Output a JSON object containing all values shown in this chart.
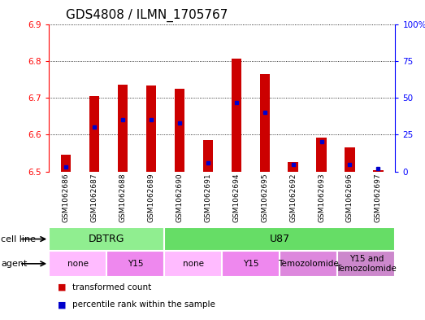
{
  "title": "GDS4808 / ILMN_1705767",
  "samples": [
    "GSM1062686",
    "GSM1062687",
    "GSM1062688",
    "GSM1062689",
    "GSM1062690",
    "GSM1062691",
    "GSM1062694",
    "GSM1062695",
    "GSM1062692",
    "GSM1062693",
    "GSM1062696",
    "GSM1062697"
  ],
  "transformed_count": [
    6.545,
    6.705,
    6.735,
    6.733,
    6.725,
    6.585,
    6.807,
    6.765,
    6.525,
    6.593,
    6.565,
    6.503
  ],
  "percentile_rank": [
    3,
    30,
    35,
    35,
    33,
    6,
    47,
    40,
    5,
    20,
    5,
    2
  ],
  "ylim_left": [
    6.5,
    6.9
  ],
  "ylim_right": [
    0,
    100
  ],
  "yticks_left": [
    6.5,
    6.6,
    6.7,
    6.8,
    6.9
  ],
  "yticks_right": [
    0,
    25,
    50,
    75,
    100
  ],
  "ytick_labels_right": [
    "0",
    "25",
    "50",
    "75",
    "100%"
  ],
  "bar_color": "#cc0000",
  "dot_color": "#0000cc",
  "bar_base": 6.5,
  "cell_line_groups": [
    {
      "label": "DBTRG",
      "start": 0,
      "end": 4,
      "color": "#90ee90"
    },
    {
      "label": "U87",
      "start": 4,
      "end": 12,
      "color": "#66dd66"
    }
  ],
  "agent_groups": [
    {
      "label": "none",
      "start": 0,
      "end": 2,
      "color": "#ffbbff"
    },
    {
      "label": "Y15",
      "start": 2,
      "end": 4,
      "color": "#ee88ee"
    },
    {
      "label": "none",
      "start": 4,
      "end": 6,
      "color": "#ffbbff"
    },
    {
      "label": "Y15",
      "start": 6,
      "end": 8,
      "color": "#ee88ee"
    },
    {
      "label": "Temozolomide",
      "start": 8,
      "end": 10,
      "color": "#dd88dd"
    },
    {
      "label": "Y15 and\nTemozolomide",
      "start": 10,
      "end": 12,
      "color": "#cc88cc"
    }
  ],
  "cell_line_label": "cell line",
  "agent_label": "agent",
  "legend_items": [
    {
      "label": "transformed count",
      "color": "#cc0000"
    },
    {
      "label": "percentile rank within the sample",
      "color": "#0000cc"
    }
  ],
  "bg_color": "#ffffff",
  "label_area_color": "#d3d3d3",
  "title_fontsize": 11,
  "tick_fontsize": 7.5,
  "bar_width": 0.35
}
